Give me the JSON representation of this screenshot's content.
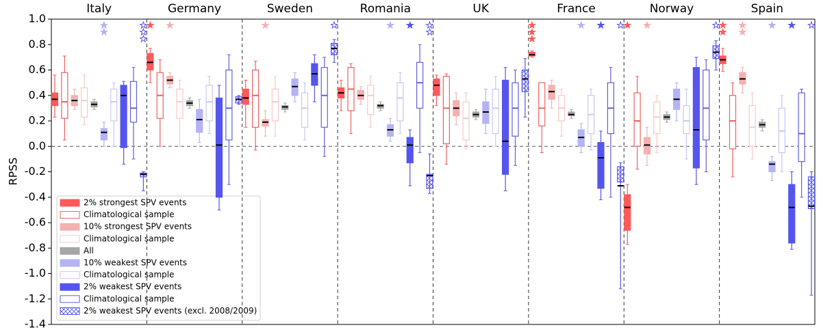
{
  "chart_data": {
    "type": "box",
    "ylabel": "RPSS",
    "categories": [
      "Italy",
      "Germany",
      "Sweden",
      "Romania",
      "UK",
      "France",
      "Norway",
      "Spain"
    ],
    "ylim": [
      -1.4,
      1.0
    ],
    "yticks": [
      {
        "value": -1.4,
        "label": "-1.4"
      },
      {
        "value": -1.2,
        "label": "-1.2"
      },
      {
        "value": -1.0,
        "label": "-1.0"
      },
      {
        "value": -0.8,
        "label": "-0.8"
      },
      {
        "value": -0.6,
        "label": "-0.6"
      },
      {
        "value": -0.4,
        "label": "-0.4"
      },
      {
        "value": -0.2,
        "label": "-0.2"
      },
      {
        "value": 0,
        "label": "0.0"
      },
      {
        "value": 0.2,
        "label": "0.2"
      },
      {
        "value": 0.4,
        "label": "0.4"
      },
      {
        "value": 0.6,
        "label": "0.6"
      },
      {
        "value": 0.8,
        "label": "0.8"
      },
      {
        "value": 1.0,
        "label": "1.0"
      }
    ],
    "series": [
      {
        "name": "2% strongest SPV events",
        "color": "#ff5a5a",
        "fill": "solid",
        "values": [
          [
            0.23,
            0.32,
            0.37,
            0.42,
            0.56
          ],
          [
            0.5,
            0.6,
            0.66,
            0.73,
            0.77
          ],
          [
            0.15,
            0.33,
            0.38,
            0.45,
            0.52
          ],
          [
            0.28,
            0.38,
            0.42,
            0.46,
            0.52
          ],
          [
            0.32,
            0.4,
            0.48,
            0.53,
            0.56
          ],
          [
            0.7,
            0.71,
            0.72,
            0.74,
            0.75
          ],
          [
            -0.77,
            -0.66,
            -0.48,
            -0.38,
            -0.3
          ],
          [
            0.59,
            0.65,
            0.68,
            0.71,
            0.77
          ]
        ],
        "stars": [
          0,
          1,
          0,
          0,
          0,
          3,
          1,
          2
        ]
      },
      {
        "name": "Climatological sample",
        "color": "#f06060",
        "fill": "none",
        "values": [
          [
            0.05,
            0.22,
            0.35,
            0.58,
            0.71
          ],
          [
            0.0,
            0.22,
            0.4,
            0.58,
            0.68
          ],
          [
            -0.03,
            0.15,
            0.4,
            0.6,
            0.67
          ],
          [
            0.1,
            0.28,
            0.45,
            0.62,
            0.65
          ],
          [
            -0.14,
            0.02,
            0.3,
            0.55,
            0.57
          ],
          [
            -0.05,
            0.16,
            0.3,
            0.5,
            0.5
          ],
          [
            -0.18,
            0.0,
            0.2,
            0.42,
            0.55
          ],
          [
            -0.24,
            -0.02,
            0.2,
            0.4,
            0.5
          ]
        ],
        "stars": [
          0,
          0,
          0,
          0,
          0,
          0,
          0,
          0
        ]
      },
      {
        "name": "10% strongest SPV events",
        "color": "#f5b0b0",
        "fill": "solid",
        "values": [
          [
            0.29,
            0.32,
            0.36,
            0.4,
            0.45
          ],
          [
            0.46,
            0.49,
            0.52,
            0.55,
            0.58
          ],
          [
            0.08,
            0.16,
            0.19,
            0.21,
            0.28
          ],
          [
            0.33,
            0.37,
            0.4,
            0.44,
            0.47
          ],
          [
            0.17,
            0.24,
            0.3,
            0.36,
            0.42
          ],
          [
            0.3,
            0.37,
            0.43,
            0.48,
            0.52
          ],
          [
            -0.15,
            -0.06,
            0.01,
            0.07,
            0.15
          ],
          [
            0.42,
            0.49,
            0.53,
            0.58,
            0.62
          ]
        ],
        "stars": [
          0,
          1,
          1,
          0,
          0,
          0,
          1,
          2
        ]
      },
      {
        "name": "Climatological sample",
        "color": "#f8c8c8",
        "fill": "none",
        "values": [
          [
            0.17,
            0.23,
            0.36,
            0.46,
            0.56
          ],
          [
            0.0,
            0.22,
            0.35,
            0.45,
            0.52
          ],
          [
            0.08,
            0.2,
            0.35,
            0.45,
            0.55
          ],
          [
            0.15,
            0.25,
            0.4,
            0.48,
            0.55
          ],
          [
            -0.02,
            0.05,
            0.22,
            0.35,
            0.42
          ],
          [
            0.08,
            0.2,
            0.3,
            0.4,
            0.45
          ],
          [
            -0.05,
            0.1,
            0.23,
            0.35,
            0.4
          ],
          [
            -0.1,
            0.0,
            0.15,
            0.32,
            0.42
          ]
        ],
        "stars": [
          0,
          0,
          0,
          0,
          0,
          0,
          0,
          0
        ]
      },
      {
        "name": "All",
        "color": "#a6a6a6",
        "fill": "solid",
        "values": [
          [
            0.29,
            0.31,
            0.33,
            0.35,
            0.37
          ],
          [
            0.3,
            0.32,
            0.34,
            0.36,
            0.38
          ],
          [
            0.27,
            0.29,
            0.31,
            0.32,
            0.34
          ],
          [
            0.28,
            0.3,
            0.32,
            0.33,
            0.35
          ],
          [
            0.21,
            0.23,
            0.25,
            0.27,
            0.29
          ],
          [
            0.22,
            0.24,
            0.25,
            0.27,
            0.29
          ],
          [
            0.19,
            0.21,
            0.23,
            0.25,
            0.27
          ],
          [
            0.12,
            0.15,
            0.17,
            0.19,
            0.21
          ]
        ],
        "stars": [
          0,
          0,
          0,
          0,
          0,
          0,
          0,
          0
        ]
      },
      {
        "name": "10% weakest SPV events",
        "color": "#b3b3f5",
        "fill": "solid",
        "values": [
          [
            0.0,
            0.05,
            0.11,
            0.14,
            0.19
          ],
          [
            0.03,
            0.11,
            0.21,
            0.29,
            0.37
          ],
          [
            0.35,
            0.4,
            0.47,
            0.53,
            0.58
          ],
          [
            0.04,
            0.08,
            0.13,
            0.17,
            0.22
          ],
          [
            0.1,
            0.18,
            0.27,
            0.35,
            0.45
          ],
          [
            -0.05,
            0.0,
            0.07,
            0.13,
            0.18
          ],
          [
            0.2,
            0.29,
            0.37,
            0.45,
            0.5
          ],
          [
            -0.27,
            -0.2,
            -0.14,
            -0.12,
            -0.08
          ]
        ],
        "stars": [
          2,
          0,
          0,
          1,
          0,
          1,
          0,
          1
        ]
      },
      {
        "name": "Climatological sample",
        "color": "#c8c8f5",
        "fill": "none",
        "values": [
          [
            0.0,
            0.2,
            0.35,
            0.45,
            0.5
          ],
          [
            0.1,
            0.2,
            0.35,
            0.48,
            0.55
          ],
          [
            0.05,
            0.15,
            0.3,
            0.42,
            0.5
          ],
          [
            0.1,
            0.2,
            0.38,
            0.5,
            0.58
          ],
          [
            0.0,
            0.1,
            0.3,
            0.45,
            0.55
          ],
          [
            -0.03,
            0.1,
            0.25,
            0.4,
            0.45
          ],
          [
            -0.1,
            0.1,
            0.2,
            0.32,
            0.45
          ],
          [
            -0.2,
            -0.05,
            0.12,
            0.3,
            0.4
          ]
        ],
        "stars": [
          0,
          0,
          0,
          0,
          0,
          0,
          0,
          0
        ]
      },
      {
        "name": "2% weakest SPV events",
        "color": "#5555ee",
        "fill": "solid",
        "values": [
          [
            -0.14,
            -0.01,
            0.4,
            0.48,
            0.51
          ],
          [
            -0.5,
            -0.4,
            0.01,
            0.38,
            0.48
          ],
          [
            0.35,
            0.48,
            0.57,
            0.65,
            0.72
          ],
          [
            -0.31,
            -0.13,
            0.01,
            0.07,
            0.13
          ],
          [
            -0.35,
            -0.22,
            0.04,
            0.52,
            0.62
          ],
          [
            -0.42,
            -0.33,
            -0.09,
            0.03,
            0.12
          ],
          [
            -0.3,
            -0.17,
            0.13,
            0.62,
            0.7
          ],
          [
            -0.81,
            -0.76,
            -0.48,
            -0.3,
            -0.2
          ]
        ],
        "stars": [
          0,
          0,
          0,
          1,
          0,
          1,
          0,
          1
        ]
      },
      {
        "name": "Climatological sample",
        "color": "#6060e0",
        "fill": "none",
        "values": [
          [
            -0.1,
            0.19,
            0.3,
            0.51,
            0.62
          ],
          [
            -0.3,
            0.05,
            0.3,
            0.6,
            0.72
          ],
          [
            -0.08,
            0.15,
            0.4,
            0.62,
            0.7
          ],
          [
            -0.05,
            0.3,
            0.5,
            0.66,
            0.8
          ],
          [
            -0.15,
            0.08,
            0.3,
            0.5,
            0.6
          ],
          [
            -0.4,
            0.1,
            0.3,
            0.5,
            0.62
          ],
          [
            -0.2,
            0.05,
            0.3,
            0.6,
            0.68
          ],
          [
            -0.4,
            -0.12,
            0.1,
            0.42,
            0.45
          ]
        ],
        "stars": [
          0,
          0,
          0,
          0,
          0,
          0,
          0,
          0
        ]
      },
      {
        "name": "2% weakest SPV events (excl. 2008/2009)",
        "color": "#5555ee",
        "fill": "hatch",
        "values": [
          [
            -0.35,
            -0.24,
            -0.22,
            -0.21,
            -0.2
          ],
          [
            0.33,
            0.34,
            0.37,
            0.39,
            0.4
          ],
          [
            0.66,
            0.72,
            0.77,
            0.81,
            0.84
          ],
          [
            -0.37,
            -0.33,
            -0.23,
            -0.22,
            -0.06
          ],
          [
            0.23,
            0.43,
            0.53,
            0.6,
            0.69
          ],
          [
            -1.12,
            -0.28,
            -0.31,
            -0.16,
            -0.13
          ],
          [
            0.6,
            0.69,
            0.74,
            0.79,
            0.83
          ],
          [
            -1.17,
            -0.49,
            -0.47,
            -0.24,
            -0.2
          ]
        ],
        "stars": [
          3,
          0,
          1,
          2,
          0,
          1,
          1,
          1
        ]
      }
    ]
  }
}
